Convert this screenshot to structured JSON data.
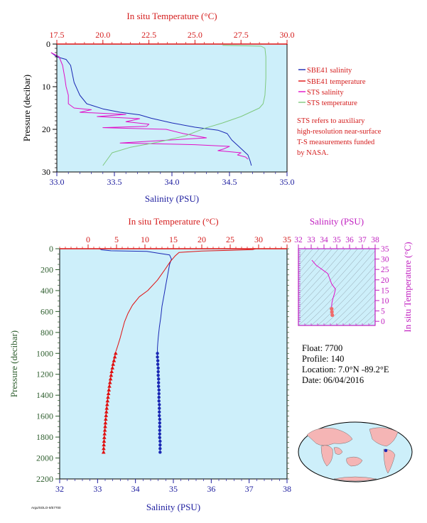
{
  "colors": {
    "plot_bg": "#cdeffa",
    "salinity_blue": "#1a28b4",
    "temperature_red": "#e01010",
    "sts_salinity_magenta": "#e010c8",
    "sts_temperature_green": "#7fc97f",
    "axis_red": "#d41c1c",
    "axis_blue": "#2020a0",
    "axis_magenta": "#c020c0",
    "axis_green": "#2e5e2e",
    "text_black": "#000000",
    "note_red": "#d41c1c"
  },
  "float_info": {
    "float": "Float:  7700",
    "profile": "Profile:  140",
    "location": "Location:  7.0°N  -89.2°E",
    "date": "Date:  06/04/2016"
  },
  "footnote": "Argo/SOLO-II/E7700",
  "chart_data": [
    {
      "type": "line",
      "panel": "near-surface",
      "xlabel": "Salinity (PSU)",
      "x2label": "In situ Temperature (°C)",
      "ylabel": "Pressure (decibar)",
      "xlim": [
        33.0,
        35.0
      ],
      "x2lim": [
        17.5,
        30.0
      ],
      "ylim": [
        30,
        0
      ],
      "x_ticks": [
        "33.0",
        "33.5",
        "34.0",
        "34.5",
        "35.0"
      ],
      "x2_ticks": [
        "17.5",
        "20.0",
        "22.5",
        "25.0",
        "27.5",
        "30.0"
      ],
      "y_ticks": [
        "0",
        "10",
        "20",
        "30"
      ],
      "legend_position": "right",
      "legend": [
        {
          "name": "SBE41 salinity",
          "color": "#1a28b4"
        },
        {
          "name": "SBE41 temperature",
          "color": "#e01010"
        },
        {
          "name": "STS salinity",
          "color": "#e010c8"
        },
        {
          "name": "STS temperature",
          "color": "#7fc97f"
        }
      ],
      "note": [
        "STS refers to auxiliary",
        "high-resolution near-surface",
        "T-S measurements funded",
        "by NASA."
      ],
      "series": [
        {
          "name": "SBE41 salinity",
          "axis": "x",
          "x": [
            32.95,
            33.0,
            33.08,
            33.12,
            33.15,
            33.2,
            33.26,
            33.4,
            33.55,
            33.72,
            33.82,
            34.0,
            34.2,
            34.4,
            34.48,
            34.52,
            34.58,
            34.62,
            34.66,
            34.68,
            34.69
          ],
          "y": [
            2.0,
            3.0,
            3.6,
            5.0,
            9.0,
            12.0,
            14.0,
            15.2,
            16.0,
            16.6,
            17.4,
            18.5,
            19.5,
            20.2,
            21.0,
            22.5,
            24.0,
            25.0,
            26.0,
            27.5,
            28.5
          ]
        },
        {
          "name": "SBE41 temperature",
          "axis": "x2",
          "x": [
            30.0,
            30.0
          ],
          "y": [
            0.1,
            0.15
          ]
        },
        {
          "name": "STS salinity",
          "axis": "x",
          "x": [
            32.95,
            33.02,
            33.05,
            33.07,
            33.08,
            33.1,
            33.1,
            33.15,
            33.3,
            33.2,
            33.6,
            33.35,
            33.72,
            33.6,
            33.8,
            33.78,
            33.4,
            33.95,
            34.1,
            34.3,
            33.55,
            34.2,
            34.5,
            34.45,
            34.4,
            34.6,
            34.57,
            34.64,
            34.66
          ],
          "y": [
            2.0,
            3.0,
            5.0,
            8.0,
            10.0,
            12.0,
            14.0,
            15.0,
            15.4,
            16.0,
            16.5,
            17.0,
            17.5,
            18.2,
            18.8,
            19.3,
            19.6,
            20.0,
            21.0,
            22.0,
            23.2,
            23.6,
            24.0,
            24.6,
            25.0,
            25.5,
            26.0,
            26.5,
            27.0
          ]
        },
        {
          "name": "STS temperature",
          "axis": "x2",
          "x": [
            26.5,
            28.6,
            28.8,
            28.85,
            28.85,
            28.8,
            28.7,
            28.5,
            27.5,
            26.5,
            25.5,
            24.5,
            23.0,
            21.5,
            20.5,
            20.0
          ],
          "y": [
            0.3,
            0.5,
            1.0,
            3.0,
            8.0,
            12.0,
            14.0,
            15.0,
            17.0,
            18.5,
            19.8,
            21.5,
            23.0,
            24.2,
            25.5,
            28.5
          ]
        }
      ]
    },
    {
      "type": "line",
      "panel": "full-profile",
      "xlabel": "Salinity (PSU)",
      "x2label": "In situ Temperature (°C)",
      "ylabel": "Pressure (decibar)",
      "xlim": [
        32,
        38
      ],
      "x2lim": [
        -5,
        35
      ],
      "ylim": [
        2200,
        0
      ],
      "x_ticks": [
        "32",
        "33",
        "34",
        "35",
        "36",
        "37",
        "38"
      ],
      "x2_ticks": [
        "0",
        "5",
        "10",
        "15",
        "20",
        "25",
        "30",
        "35"
      ],
      "y_ticks": [
        "0",
        "200",
        "400",
        "600",
        "800",
        "1000",
        "1200",
        "1400",
        "1600",
        "1800",
        "2000",
        "2200"
      ],
      "series": [
        {
          "name": "Salinity",
          "axis": "x",
          "x": [
            33.05,
            33.1,
            33.35,
            34.3,
            34.55,
            34.9,
            34.95,
            34.9,
            34.85,
            34.8,
            34.75,
            34.7,
            34.67,
            34.63,
            34.6,
            34.59,
            34.58,
            34.58,
            34.58
          ],
          "y": [
            0,
            10,
            20,
            25,
            40,
            60,
            100,
            150,
            250,
            350,
            450,
            550,
            650,
            750,
            850,
            900,
            950,
            980,
            1000
          ]
        },
        {
          "name": "Temperature",
          "axis": "x2",
          "x": [
            29.5,
            29.0,
            25.0,
            20.0,
            16.0,
            15.3,
            14.5,
            13.5,
            12.2,
            10.5,
            9.0,
            7.8,
            7.0,
            6.4,
            6.0,
            5.6,
            5.2,
            4.9
          ],
          "y": [
            0,
            8,
            15,
            22,
            35,
            70,
            120,
            200,
            300,
            400,
            460,
            540,
            620,
            700,
            780,
            860,
            930,
            980
          ]
        },
        {
          "name": "Salinity (deep, markers)",
          "axis": "x",
          "x": [
            34.58,
            34.58,
            34.59,
            34.59,
            34.6,
            34.6,
            34.6,
            34.61,
            34.61,
            34.61,
            34.62,
            34.62,
            34.62,
            34.62,
            34.63,
            34.63,
            34.63,
            34.63,
            34.64,
            34.64,
            34.64,
            34.64,
            34.64,
            34.64,
            34.65,
            34.65,
            34.65,
            34.65
          ],
          "y": [
            1000,
            1035,
            1070,
            1105,
            1140,
            1175,
            1210,
            1245,
            1280,
            1315,
            1350,
            1385,
            1420,
            1455,
            1490,
            1525,
            1560,
            1595,
            1630,
            1665,
            1700,
            1735,
            1770,
            1805,
            1840,
            1875,
            1910,
            1945
          ]
        },
        {
          "name": "Temperature (deep, markers)",
          "axis": "x2",
          "x": [
            4.85,
            4.7,
            4.55,
            4.4,
            4.28,
            4.15,
            4.05,
            3.95,
            3.85,
            3.75,
            3.66,
            3.58,
            3.5,
            3.42,
            3.35,
            3.28,
            3.22,
            3.16,
            3.1,
            3.05,
            3.0,
            2.95,
            2.9,
            2.85,
            2.81,
            2.77,
            2.74,
            2.72
          ],
          "y": [
            1000,
            1035,
            1070,
            1105,
            1140,
            1175,
            1210,
            1245,
            1280,
            1315,
            1350,
            1385,
            1420,
            1455,
            1490,
            1525,
            1560,
            1595,
            1630,
            1665,
            1700,
            1735,
            1770,
            1805,
            1840,
            1875,
            1910,
            1945
          ]
        }
      ]
    },
    {
      "type": "scatter",
      "panel": "T-S diagram",
      "xlabel": "Salinity (PSU)",
      "ylabel": "In situ Temperature (°C)",
      "xlim": [
        32,
        38
      ],
      "ylim": [
        -2,
        35
      ],
      "x_ticks": [
        "32",
        "33",
        "34",
        "35",
        "36",
        "37",
        "38"
      ],
      "y_ticks": [
        "0",
        "5",
        "10",
        "15",
        "20",
        "25",
        "30",
        "35"
      ],
      "series": [
        {
          "name": "T-S profile",
          "x": [
            33.05,
            33.4,
            34.3,
            34.6,
            34.9,
            34.8,
            34.7,
            34.62,
            34.6,
            34.6,
            34.62,
            34.65
          ],
          "y": [
            29.5,
            27.0,
            23.0,
            18.0,
            15.5,
            13.0,
            11.0,
            9.0,
            7.5,
            6.0,
            4.5,
            3.0
          ]
        }
      ]
    }
  ]
}
